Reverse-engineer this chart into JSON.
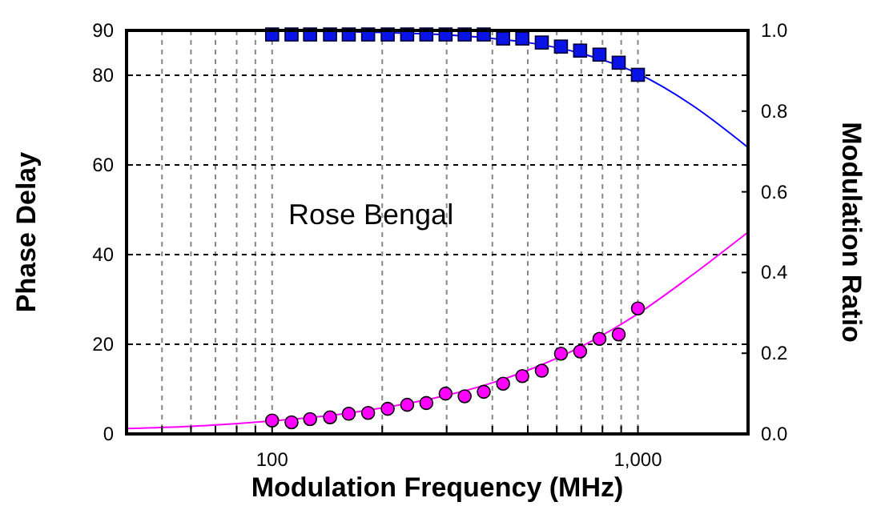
{
  "chart_data": {
    "type": "scatter",
    "xlabel": "Modulation Frequency (MHz)",
    "ylabel": "Phase Delay",
    "y2label": "Modulation Ratio",
    "annotations": [
      "Rose Bengal"
    ],
    "log": "x",
    "grid": true,
    "xlim": [
      40,
      2000
    ],
    "xticks": [
      {
        "value": 50,
        "label": null
      },
      {
        "value": 60,
        "label": null
      },
      {
        "value": 70,
        "label": null
      },
      {
        "value": 80,
        "label": null
      },
      {
        "value": 90,
        "label": null
      },
      100,
      {
        "value": 200,
        "label": null
      },
      {
        "value": 300,
        "label": null
      },
      {
        "value": 400,
        "label": null
      },
      {
        "value": 500,
        "label": null
      },
      {
        "value": 600,
        "label": null
      },
      {
        "value": 700,
        "label": null
      },
      {
        "value": 800,
        "label": null
      },
      {
        "value": 900,
        "label": null
      },
      {
        "value": 1000,
        "label": "1,000"
      }
    ],
    "ylim": [
      0,
      90
    ],
    "yticks": [
      0,
      20,
      40,
      60,
      80,
      90
    ],
    "y2lim": [
      0,
      1
    ],
    "y2ticks": [
      {
        "value": 0,
        "label": "0.0"
      },
      {
        "value": 0.2,
        "label": "0.2"
      },
      {
        "value": 0.4,
        "label": "0.4"
      },
      {
        "value": 0.6,
        "label": "0.6"
      },
      {
        "value": 0.8,
        "label": "0.8"
      },
      {
        "value": 1,
        "label": "1.0"
      }
    ],
    "x": [
      100,
      113,
      127,
      144,
      162,
      183,
      207,
      234,
      264,
      298,
      336,
      379,
      428,
      483,
      546,
      616,
      695,
      785,
      886,
      1000
    ],
    "series": [
      {
        "type": "line",
        "color": "#0000ff",
        "marker": "none",
        "line_style": "solid",
        "axis": "y2",
        "x": [
          100,
          200,
          300,
          400,
          500,
          700,
          1000,
          1400,
          2000
        ],
        "values": [
          0.999,
          0.995,
          0.989,
          0.98,
          0.97,
          0.943,
          0.893,
          0.816,
          0.71
        ]
      },
      {
        "type": "line",
        "color": "#ff00ff",
        "marker": "none",
        "line_style": "solid",
        "x": [
          40,
          60,
          100,
          150,
          200,
          300,
          400,
          500,
          700,
          1000,
          1400,
          2000
        ],
        "values": [
          1.2,
          1.7,
          2.9,
          4.3,
          5.8,
          8.6,
          11.4,
          14.2,
          19.5,
          26.8,
          35.3,
          45
        ]
      },
      {
        "color": "#0a14e6",
        "marker": "square",
        "axis": "y2",
        "values": [
          0.99,
          0.99,
          0.99,
          0.99,
          0.99,
          0.99,
          0.99,
          0.99,
          0.99,
          0.99,
          0.99,
          0.99,
          0.98,
          0.98,
          0.97,
          0.96,
          0.95,
          0.94,
          0.92,
          0.89
        ]
      },
      {
        "color": "#ff00ff",
        "marker": "circle",
        "values": [
          3.0,
          2.6,
          3.3,
          3.7,
          4.5,
          4.7,
          5.6,
          6.5,
          6.9,
          9.0,
          8.4,
          9.4,
          11.2,
          12.9,
          14.1,
          17.9,
          18.4,
          21.2,
          22.2,
          28.0
        ]
      }
    ]
  }
}
